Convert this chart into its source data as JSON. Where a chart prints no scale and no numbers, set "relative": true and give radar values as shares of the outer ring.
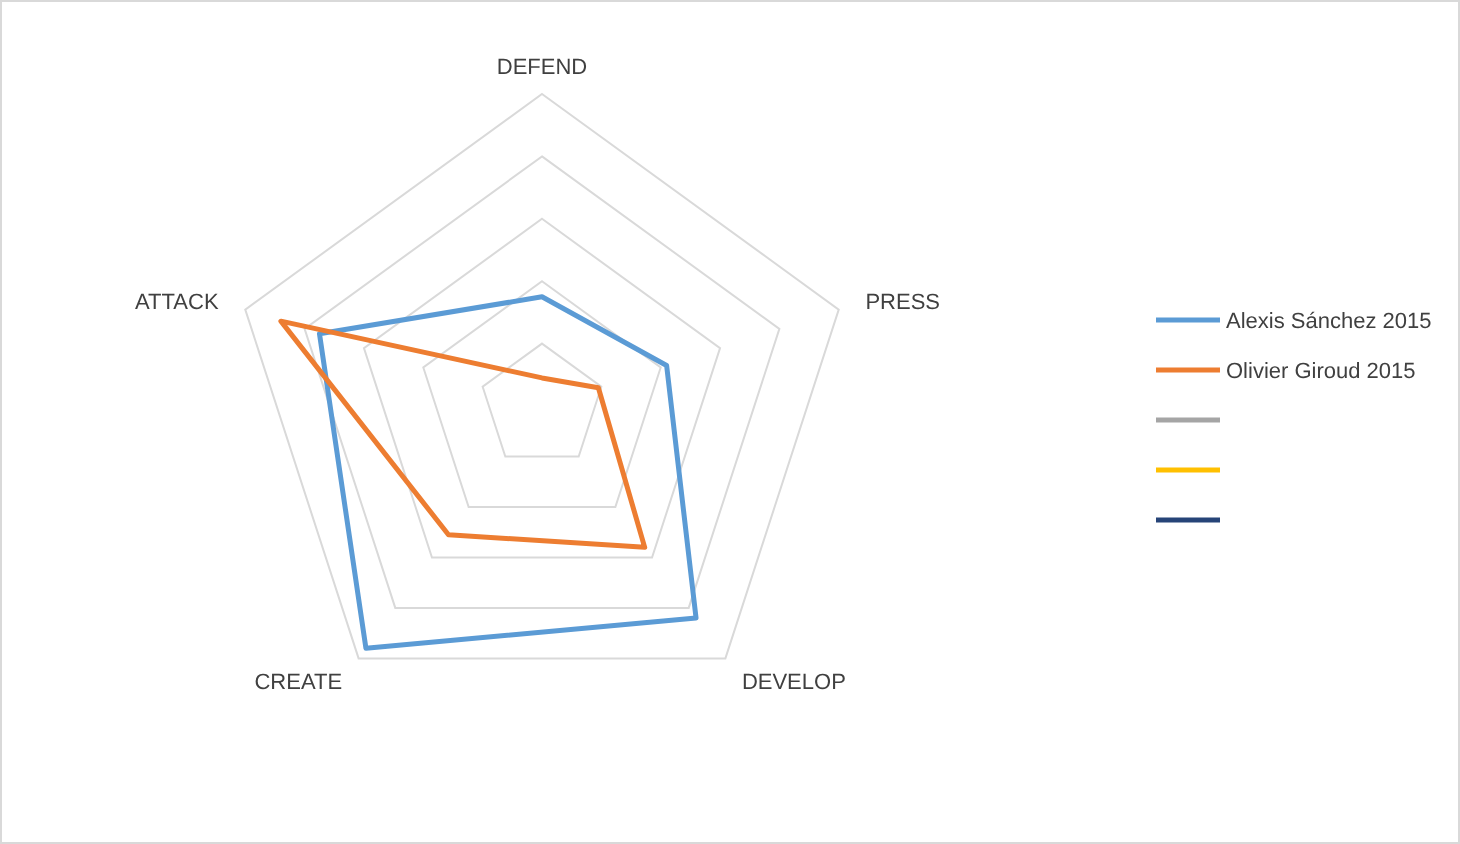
{
  "chart_data": {
    "type": "radar",
    "relative": true,
    "grid": true,
    "legend": "right",
    "categories": [
      "DEFEND",
      "PRESS",
      "DEVELOP",
      "CREATE",
      "ATTACK"
    ],
    "series": [
      {
        "name": "Alexis Sánchez 2015",
        "color": "#5b9bd5",
        "values": [
          0.35,
          0.42,
          0.84,
          0.96,
          0.75
        ]
      },
      {
        "name": "Olivier Giroud 2015",
        "color": "#ed7d31",
        "values": [
          0.09,
          0.19,
          0.56,
          0.51,
          0.88
        ]
      }
    ]
  }
}
